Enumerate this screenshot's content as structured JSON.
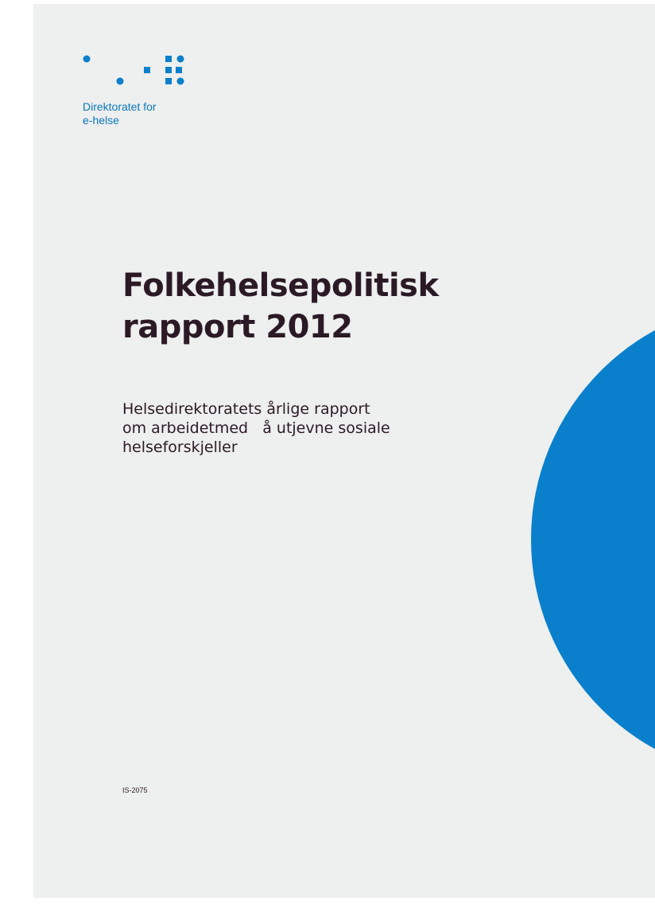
{
  "colors": {
    "brand_blue": "#0a80cc",
    "page_background": "#eeefef",
    "text_dark": "#2b1a25"
  },
  "logo": {
    "icon": "dot-grid-logo-icon",
    "text_line1": "Direktoratet for",
    "text_line2": "e-helse"
  },
  "document": {
    "title": "Folkehelsepolitisk\nrapport 2012",
    "subtitle_line1": "Helsedirektoratets årlige rapport",
    "subtitle_line2": "om arbeidetmed   å utjevne sosiale",
    "subtitle_line3": "helseforskjeller",
    "report_id": "IS-2075"
  }
}
